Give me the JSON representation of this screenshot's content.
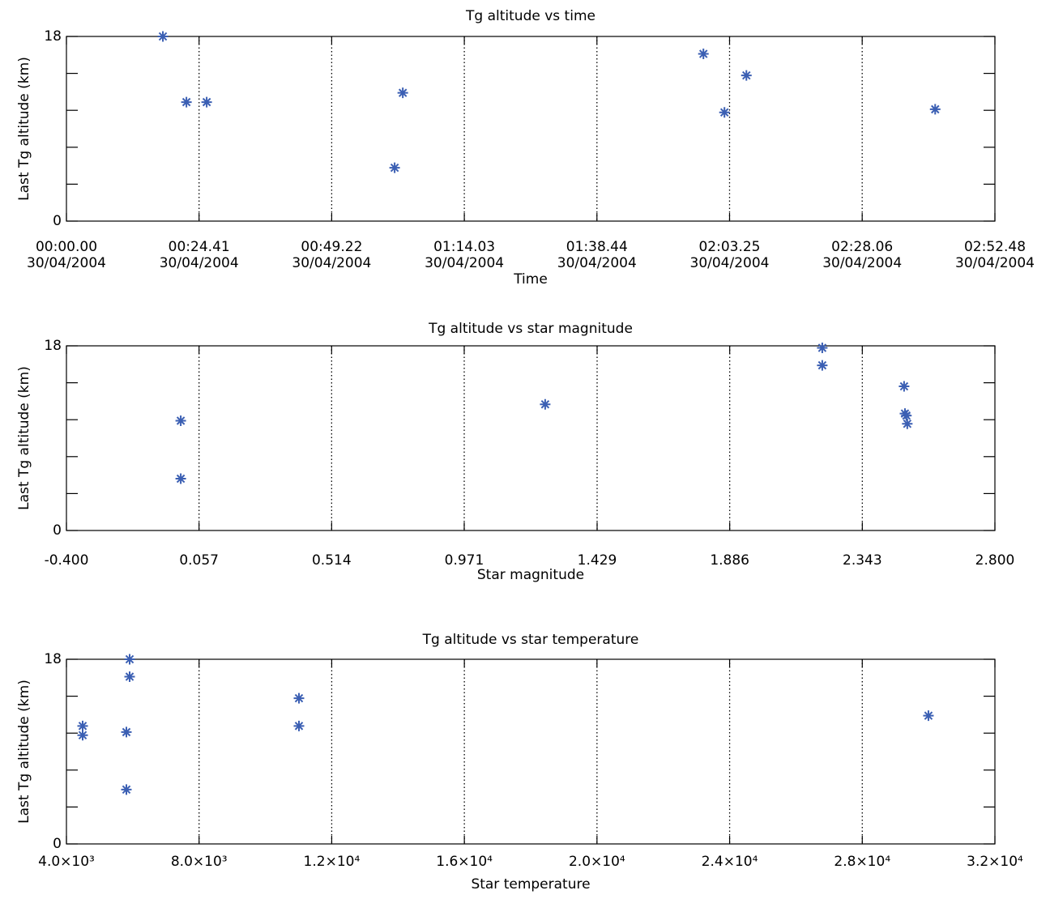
{
  "chart_data": [
    {
      "type": "scatter",
      "title": "Tg altitude vs time",
      "xlabel": "Time",
      "ylabel": "Last Tg altitude (km)",
      "color": "#3b5fb3",
      "grid": "x",
      "x": [
        1077,
        1340,
        1566,
        3665,
        3756,
        7113,
        7348,
        7593,
        9701
      ],
      "values": [
        18,
        11.6,
        11.6,
        5.2,
        12.5,
        16.3,
        10.6,
        14.2,
        10.9
      ],
      "xlim": [
        0,
        10368
      ],
      "xticks": [
        {
          "value": 0,
          "label": "00:00.00\n30/04/2004"
        },
        {
          "value": 1481,
          "label": "00:24.41\n30/04/2004"
        },
        {
          "value": 2962,
          "label": "00:49.22\n30/04/2004"
        },
        {
          "value": 4443,
          "label": "01:14.03\n30/04/2004"
        },
        {
          "value": 5924,
          "label": "01:38.44\n30/04/2004"
        },
        {
          "value": 7405,
          "label": "02:03.25\n30/04/2004"
        },
        {
          "value": 8886,
          "label": "02:28.06\n30/04/2004"
        },
        {
          "value": 10368,
          "label": "02:52.48\n30/04/2004"
        }
      ],
      "ylim": [
        0,
        18
      ],
      "yticks": [
        0,
        18
      ],
      "yminorticks": [
        3.6,
        7.2,
        10.8,
        14.4
      ]
    },
    {
      "type": "scatter",
      "title": "Tg altitude vs star magnitude",
      "xlabel": "Star magnitude",
      "ylabel": "Last Tg altitude (km)",
      "color": "#3b5fb3",
      "grid": "x",
      "x": [
        -0.006,
        -0.006,
        1.25,
        2.205,
        2.205,
        2.487,
        2.49,
        2.495,
        2.498
      ],
      "values": [
        10.7,
        5.05,
        12.3,
        17.8,
        16.1,
        14.05,
        11.4,
        11.2,
        10.4
      ],
      "xlim": [
        -0.4,
        2.8
      ],
      "xticks": [
        {
          "value": -0.4,
          "label": "-0.400"
        },
        0.057,
        0.514,
        0.971,
        1.429,
        1.886,
        2.343,
        {
          "value": 2.8,
          "label": "2.800"
        }
      ],
      "ylim": [
        0,
        18
      ],
      "yticks": [
        0,
        18
      ],
      "yminorticks": [
        3.6,
        7.2,
        10.8,
        14.4
      ]
    },
    {
      "type": "scatter",
      "title": "Tg altitude vs star temperature",
      "xlabel": "Star temperature",
      "ylabel": "Last Tg altitude (km)",
      "color": "#3b5fb3",
      "grid": "x",
      "x": [
        4489,
        4489,
        5808,
        5808,
        5906,
        5906,
        11012,
        11012,
        29995
      ],
      "values": [
        11.5,
        10.6,
        10.9,
        5.3,
        18,
        16.3,
        14.2,
        11.5,
        12.5
      ],
      "xlim": [
        4000,
        32000
      ],
      "xticks": [
        {
          "value": 4000,
          "label": "4.0×10³"
        },
        {
          "value": 8000,
          "label": "8.0×10³"
        },
        {
          "value": 12000,
          "label": "1.2×10⁴"
        },
        {
          "value": 16000,
          "label": "1.6×10⁴"
        },
        {
          "value": 20000,
          "label": "2.0×10⁴"
        },
        {
          "value": 24000,
          "label": "2.4×10⁴"
        },
        {
          "value": 28000,
          "label": "2.8×10⁴"
        },
        {
          "value": 32000,
          "label": "3.2×10⁴"
        }
      ],
      "ylim": [
        0,
        18
      ],
      "yticks": [
        0,
        18
      ],
      "yminorticks": [
        3.6,
        7.2,
        10.8,
        14.4
      ]
    }
  ]
}
